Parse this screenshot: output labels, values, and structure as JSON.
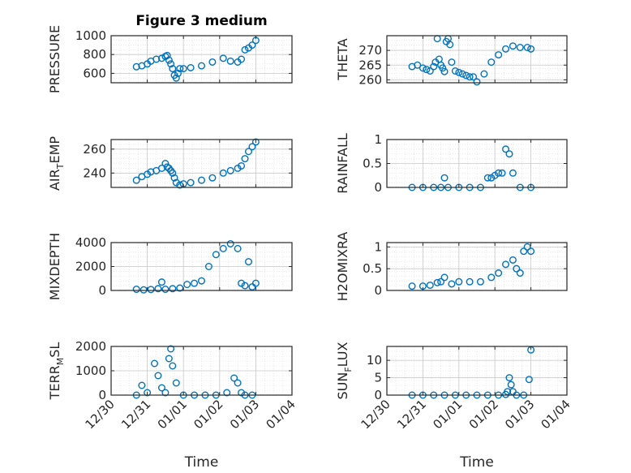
{
  "figure": {
    "title": "Figure 3 medium",
    "xlabel": "Time",
    "x_ticklabels": [
      "12/30",
      "12/31",
      "01/01",
      "01/02",
      "01/03",
      "01/04"
    ],
    "marker_color": "#0072BD"
  },
  "chart_data": [
    {
      "type": "scatter",
      "marker": "circle-open",
      "ylabel": "PRESSURE",
      "xlim": [
        0,
        5
      ],
      "ylim": [
        500,
        1000
      ],
      "yticks": [
        600,
        800,
        1000
      ],
      "grid": true,
      "x": [
        0.7,
        0.85,
        1.0,
        1.1,
        1.25,
        1.4,
        1.5,
        1.55,
        1.6,
        1.65,
        1.7,
        1.75,
        1.8,
        1.85,
        1.9,
        2.0,
        2.2,
        2.5,
        2.8,
        3.1,
        3.3,
        3.5,
        3.6,
        3.7,
        3.8,
        3.9,
        4.0
      ],
      "y": [
        670,
        680,
        700,
        730,
        750,
        760,
        780,
        790,
        740,
        700,
        650,
        580,
        550,
        600,
        650,
        650,
        660,
        680,
        720,
        760,
        730,
        720,
        750,
        850,
        870,
        900,
        950
      ]
    },
    {
      "type": "scatter",
      "marker": "circle-open",
      "ylabel": "THETA",
      "xlim": [
        0,
        5
      ],
      "ylim": [
        259,
        275
      ],
      "yticks": [
        260,
        265,
        270
      ],
      "grid": true,
      "x": [
        0.7,
        0.85,
        1.0,
        1.1,
        1.2,
        1.3,
        1.35,
        1.4,
        1.45,
        1.5,
        1.55,
        1.6,
        1.65,
        1.7,
        1.75,
        1.8,
        1.9,
        2.0,
        2.1,
        2.2,
        2.3,
        2.4,
        2.5,
        2.7,
        2.9,
        3.1,
        3.3,
        3.5,
        3.7,
        3.9,
        4.0
      ],
      "y": [
        264.5,
        265,
        264,
        263.5,
        263,
        264.5,
        266,
        274,
        267,
        265,
        264,
        262.8,
        273,
        274,
        272,
        266,
        263,
        262.5,
        262,
        261.5,
        261,
        261,
        259.3,
        262,
        266,
        268.5,
        270.5,
        271.5,
        271,
        271,
        270.5
      ]
    },
    {
      "type": "scatter",
      "marker": "circle-open",
      "ylabel": "AIR_TEMP",
      "xlim": [
        0,
        5
      ],
      "ylim": [
        228,
        268
      ],
      "yticks": [
        240,
        260
      ],
      "grid": true,
      "x": [
        0.7,
        0.85,
        1.0,
        1.1,
        1.25,
        1.4,
        1.5,
        1.55,
        1.6,
        1.65,
        1.7,
        1.75,
        1.8,
        1.9,
        2.0,
        2.2,
        2.5,
        2.8,
        3.1,
        3.3,
        3.5,
        3.6,
        3.7,
        3.8,
        3.9,
        4.0
      ],
      "y": [
        234,
        237,
        239,
        241,
        242,
        244,
        248,
        245,
        244,
        242,
        240,
        236,
        232,
        230,
        231,
        232,
        234,
        236,
        240,
        242,
        244,
        246,
        252,
        258,
        262,
        266
      ]
    },
    {
      "type": "scatter",
      "marker": "circle-open",
      "ylabel": "RAINFALL",
      "xlim": [
        0,
        5
      ],
      "ylim": [
        0,
        1
      ],
      "yticks": [
        0,
        0.5,
        1
      ],
      "grid": true,
      "x": [
        0.7,
        1.0,
        1.3,
        1.5,
        1.6,
        1.7,
        2.0,
        2.3,
        2.6,
        2.8,
        2.9,
        3.0,
        3.1,
        3.2,
        3.3,
        3.4,
        3.5,
        3.7,
        4.0
      ],
      "y": [
        0,
        0,
        0,
        0,
        0.2,
        0,
        0,
        0,
        0,
        0.2,
        0.2,
        0.25,
        0.3,
        0.3,
        0.8,
        0.7,
        0.3,
        0,
        0
      ]
    },
    {
      "type": "scatter",
      "marker": "circle-open",
      "ylabel": "MIXDEPTH",
      "xlim": [
        0,
        5
      ],
      "ylim": [
        0,
        4000
      ],
      "yticks": [
        0,
        2000,
        4000
      ],
      "grid": true,
      "x": [
        0.7,
        0.9,
        1.1,
        1.3,
        1.4,
        1.5,
        1.7,
        1.9,
        2.1,
        2.3,
        2.5,
        2.7,
        2.9,
        3.1,
        3.3,
        3.5,
        3.6,
        3.7,
        3.8,
        3.9,
        4.0
      ],
      "y": [
        100,
        50,
        80,
        150,
        700,
        100,
        150,
        200,
        500,
        600,
        800,
        2000,
        3000,
        3500,
        3900,
        3500,
        600,
        400,
        2400,
        300,
        600
      ]
    },
    {
      "type": "scatter",
      "marker": "circle-open",
      "ylabel": "H2OMIXRA",
      "xlim": [
        0,
        5
      ],
      "ylim": [
        0,
        1.1
      ],
      "yticks": [
        0,
        0.5,
        1
      ],
      "grid": true,
      "x": [
        0.7,
        1.0,
        1.2,
        1.4,
        1.5,
        1.6,
        1.8,
        2.0,
        2.3,
        2.6,
        2.9,
        3.1,
        3.3,
        3.5,
        3.6,
        3.7,
        3.8,
        3.9,
        4.0
      ],
      "y": [
        0.1,
        0.1,
        0.12,
        0.18,
        0.2,
        0.3,
        0.15,
        0.2,
        0.2,
        0.2,
        0.3,
        0.4,
        0.6,
        0.7,
        0.5,
        0.4,
        0.9,
        1.0,
        0.9
      ]
    },
    {
      "type": "scatter",
      "marker": "circle-open",
      "ylabel": "TERR_MSL",
      "xlim": [
        0,
        5
      ],
      "ylim": [
        0,
        2000
      ],
      "yticks": [
        0,
        1000,
        2000
      ],
      "grid": true,
      "x": [
        0.7,
        0.85,
        1.0,
        1.2,
        1.3,
        1.4,
        1.5,
        1.6,
        1.65,
        1.7,
        1.8,
        2.0,
        2.3,
        2.6,
        2.9,
        3.2,
        3.4,
        3.5,
        3.6,
        3.7,
        3.9
      ],
      "y": [
        0,
        400,
        100,
        1300,
        800,
        300,
        100,
        1500,
        1900,
        1200,
        500,
        0,
        0,
        0,
        0,
        100,
        700,
        500,
        100,
        0,
        0
      ]
    },
    {
      "type": "scatter",
      "marker": "circle-open",
      "ylabel": "SUN_FLUX",
      "xlim": [
        0,
        5
      ],
      "ylim": [
        0,
        14
      ],
      "yticks": [
        0,
        5,
        10
      ],
      "grid": true,
      "x": [
        0.7,
        1.0,
        1.3,
        1.6,
        1.9,
        2.2,
        2.5,
        2.8,
        3.1,
        3.3,
        3.35,
        3.4,
        3.45,
        3.5,
        3.6,
        3.8,
        3.95,
        4.0
      ],
      "y": [
        0,
        0,
        0,
        0,
        0,
        0,
        0,
        0,
        0,
        0.2,
        1,
        5,
        3,
        1,
        0,
        0,
        4.5,
        13
      ]
    }
  ]
}
